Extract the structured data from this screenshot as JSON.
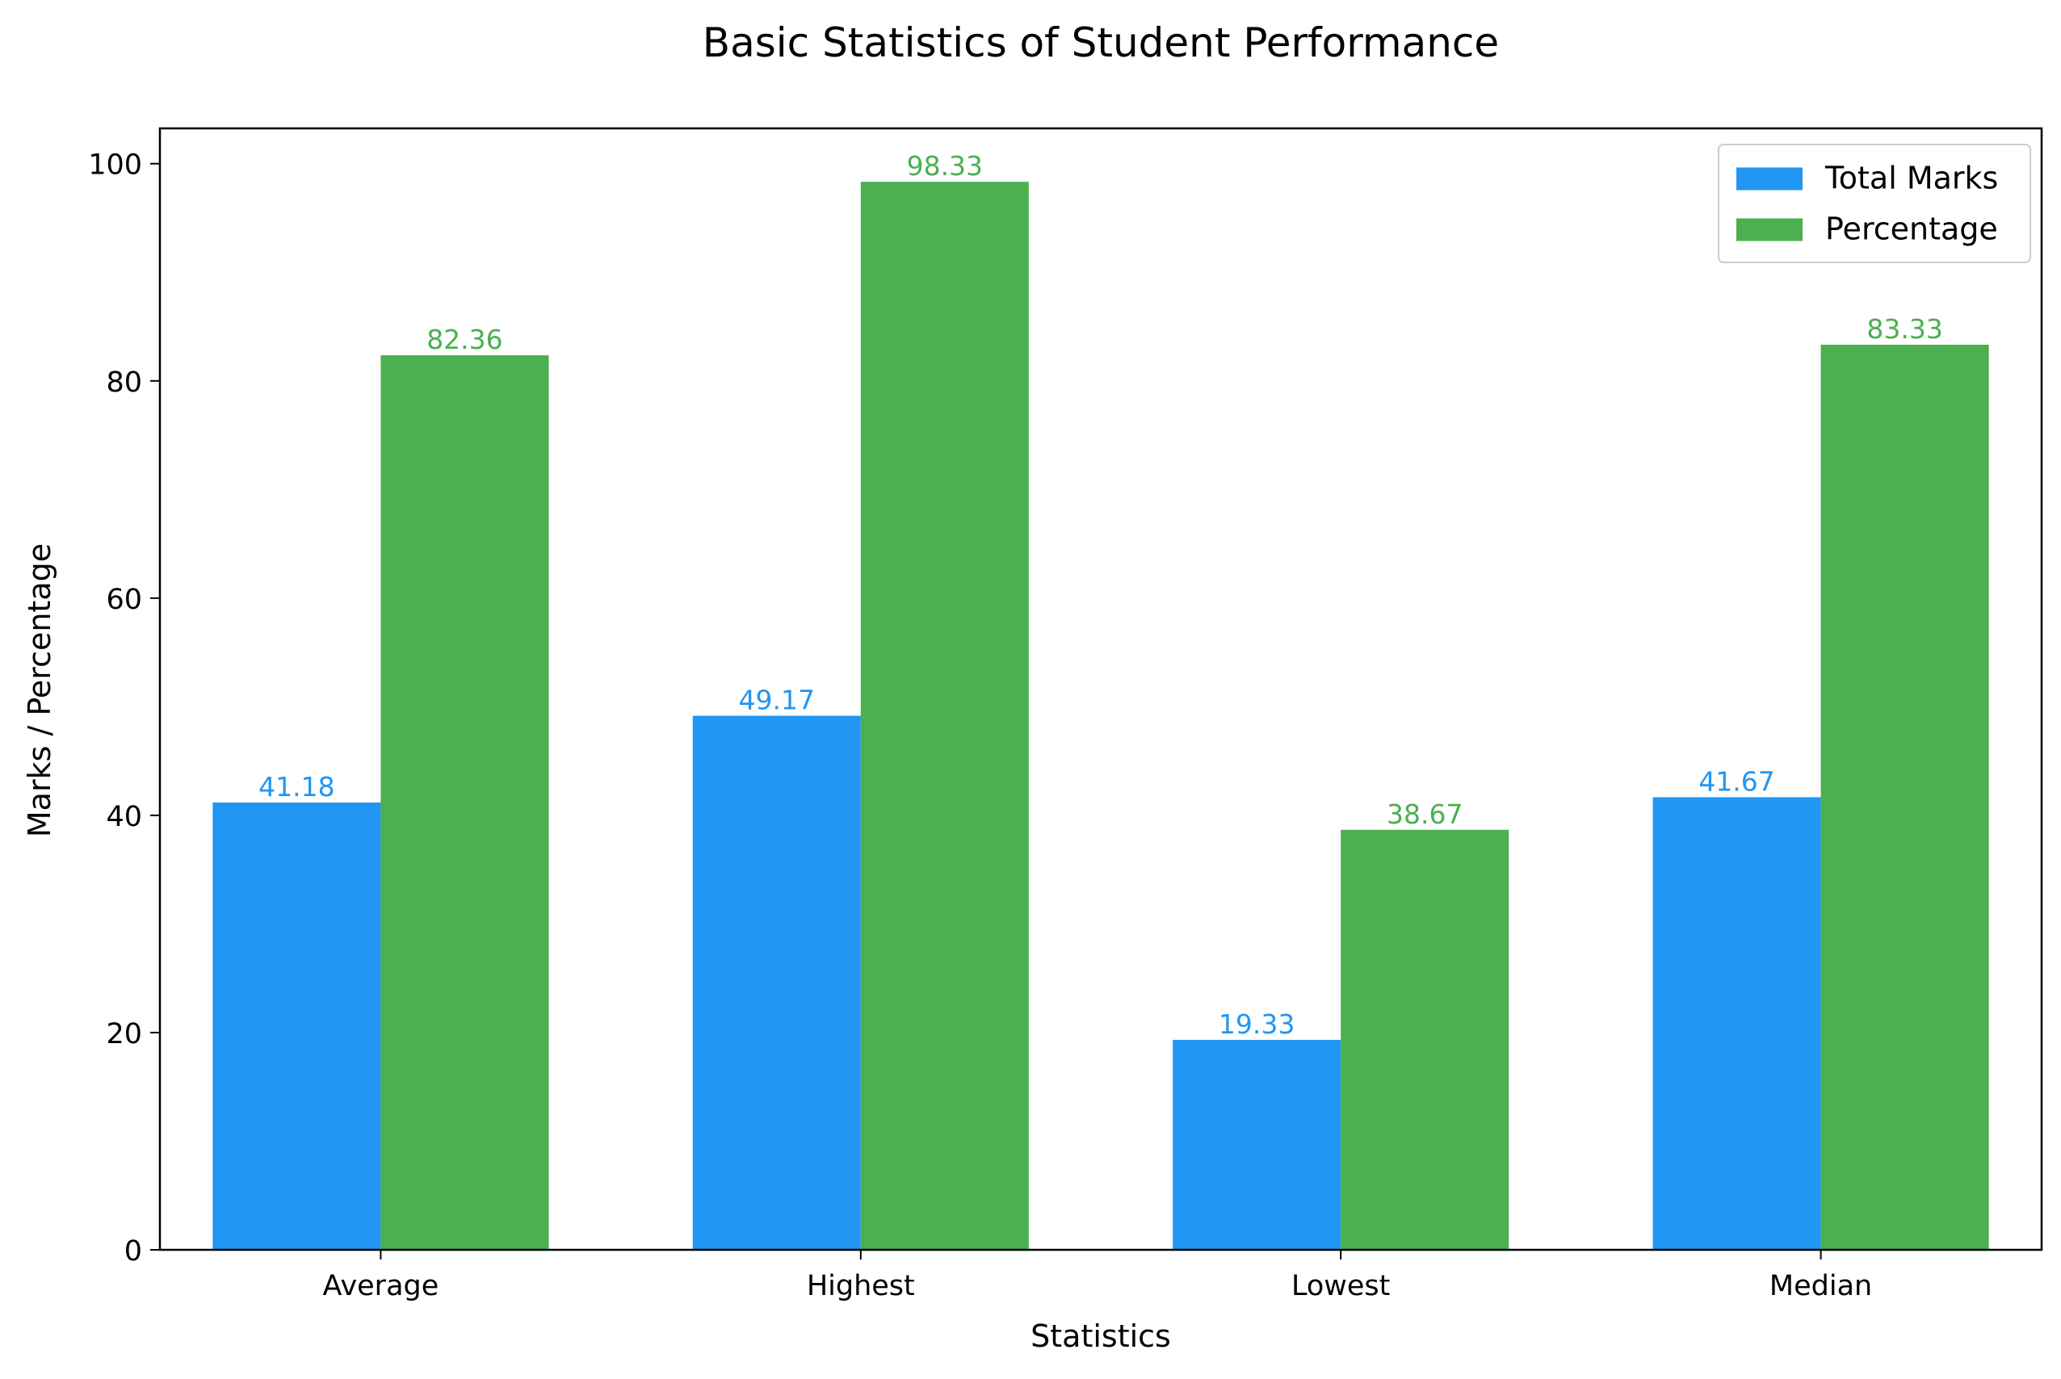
{
  "chart_data": {
    "type": "bar",
    "title": "Basic Statistics of Student Performance",
    "xlabel": "Statistics",
    "ylabel": "Marks / Percentage",
    "categories": [
      "Average",
      "Highest",
      "Lowest",
      "Median"
    ],
    "series": [
      {
        "name": "Total Marks",
        "color": "#2196F3",
        "values": [
          41.18,
          49.17,
          19.33,
          41.67
        ],
        "labels": [
          "41.18",
          "49.17",
          "19.33",
          "41.67"
        ]
      },
      {
        "name": "Percentage",
        "color": "#4CAF50",
        "values": [
          82.36,
          98.33,
          38.67,
          83.33
        ],
        "labels": [
          "82.36",
          "98.33",
          "38.67",
          "83.33"
        ]
      }
    ],
    "ylim": [
      0,
      103.25
    ],
    "yticks": [
      0,
      20,
      40,
      60,
      80,
      100
    ],
    "ytick_labels": [
      "0",
      "20",
      "40",
      "60",
      "80",
      "100"
    ],
    "grid": false,
    "legend_position": "upper right"
  }
}
